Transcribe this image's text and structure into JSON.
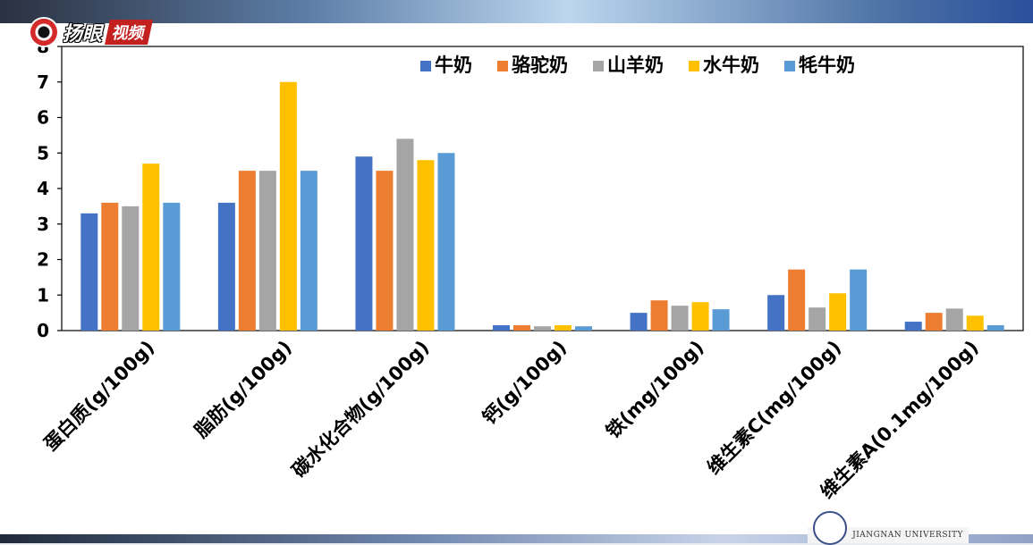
{
  "overlay": {
    "logo_text": "扬眼",
    "logo_tag": "视频",
    "watermark_text": "JIANGNAN UNIVERSITY"
  },
  "colors": {
    "background": "#ffffff",
    "axis": "#000000"
  },
  "chart_data": {
    "type": "bar",
    "title": "",
    "xlabel": "",
    "ylabel": "",
    "ylim": [
      0,
      8
    ],
    "yticks": [
      0,
      1,
      2,
      3,
      4,
      5,
      6,
      7,
      8
    ],
    "grid": false,
    "legend_position": "top-right",
    "categories": [
      "蛋白质(g/100g)",
      "脂肪(g/100g)",
      "碳水化合物(g/100g)",
      "钙(g/100g)",
      "铁(mg/100g)",
      "维生素C(mg/100g)",
      "维生素A(0.1mg/100g)"
    ],
    "series": [
      {
        "name": "牛奶",
        "color": "#4472c4",
        "values": [
          3.3,
          3.6,
          4.9,
          0.15,
          0.5,
          1.0,
          0.25
        ]
      },
      {
        "name": "骆驼奶",
        "color": "#ed7d31",
        "values": [
          3.6,
          4.5,
          4.5,
          0.15,
          0.85,
          1.72,
          0.5
        ]
      },
      {
        "name": "山羊奶",
        "color": "#a5a5a5",
        "values": [
          3.5,
          4.5,
          5.4,
          0.12,
          0.7,
          0.65,
          0.62
        ]
      },
      {
        "name": "水牛奶",
        "color": "#ffc000",
        "values": [
          4.7,
          7.0,
          4.8,
          0.15,
          0.8,
          1.05,
          0.42
        ]
      },
      {
        "name": "牦牛奶",
        "color": "#5b9bd5",
        "values": [
          3.6,
          4.5,
          5.0,
          0.12,
          0.6,
          1.72,
          0.15
        ]
      }
    ]
  }
}
